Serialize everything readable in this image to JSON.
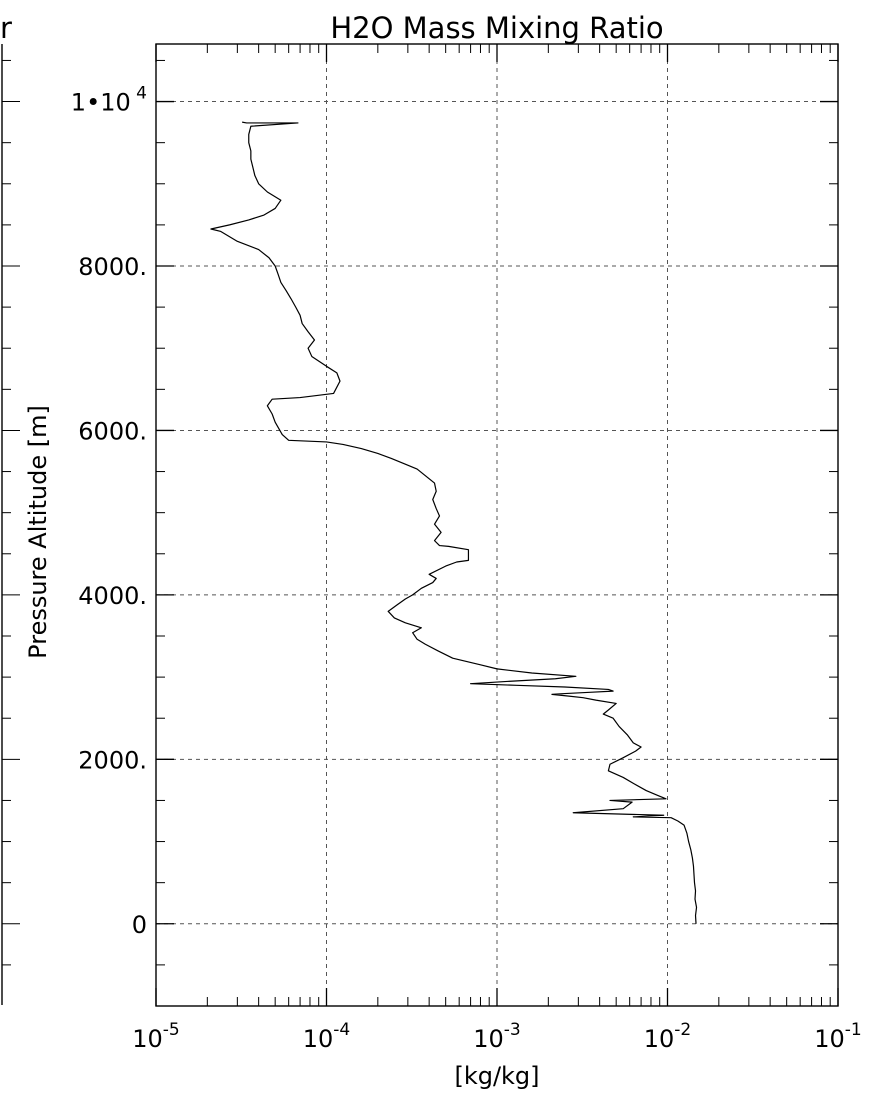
{
  "chart_data": {
    "type": "line",
    "title": "H2O Mass Mixing Ratio",
    "left_panel_title_fragment": "r",
    "xlabel": "[kg/kg]",
    "ylabel": "Pressure Altitude [m]",
    "xscale": "log",
    "xlim": [
      1e-05,
      0.1
    ],
    "ylim": [
      -1000,
      10700
    ],
    "grid": true,
    "x_tick_labels": [
      {
        "base": "10",
        "exp": "-5",
        "value": 1e-05
      },
      {
        "base": "10",
        "exp": "-4",
        "value": 0.0001
      },
      {
        "base": "10",
        "exp": "-3",
        "value": 0.001
      },
      {
        "base": "10",
        "exp": "-2",
        "value": 0.01
      },
      {
        "base": "10",
        "exp": "-1",
        "value": 0.1
      }
    ],
    "y_tick_labels": [
      {
        "label": "0",
        "value": 0
      },
      {
        "label": "2000.",
        "value": 2000
      },
      {
        "label": "4000.",
        "value": 4000
      },
      {
        "label": "6000.",
        "value": 6000
      },
      {
        "label": "8000.",
        "value": 8000
      },
      {
        "label": "1•10",
        "exp": "4",
        "value": 10000
      }
    ],
    "series": [
      {
        "color": "#000000",
        "points": [
          [
            0.0147,
            0
          ],
          [
            0.0146,
            100
          ],
          [
            0.0148,
            200
          ],
          [
            0.0145,
            300
          ],
          [
            0.0146,
            400
          ],
          [
            0.0144,
            500
          ],
          [
            0.0143,
            600
          ],
          [
            0.0142,
            700
          ],
          [
            0.014,
            800
          ],
          [
            0.0137,
            900
          ],
          [
            0.0133,
            1000
          ],
          [
            0.013,
            1100
          ],
          [
            0.0125,
            1200
          ],
          [
            0.0115,
            1250
          ],
          [
            0.0105,
            1290
          ],
          [
            0.0063,
            1300
          ],
          [
            0.0095,
            1320
          ],
          [
            0.0028,
            1350
          ],
          [
            0.0055,
            1400
          ],
          [
            0.0062,
            1480
          ],
          [
            0.0046,
            1500
          ],
          [
            0.0098,
            1520
          ],
          [
            0.0088,
            1560
          ],
          [
            0.0075,
            1620
          ],
          [
            0.0064,
            1700
          ],
          [
            0.0055,
            1780
          ],
          [
            0.0045,
            1860
          ],
          [
            0.0046,
            1940
          ],
          [
            0.0055,
            2020
          ],
          [
            0.0065,
            2100
          ],
          [
            0.007,
            2150
          ],
          [
            0.0063,
            2200
          ],
          [
            0.0058,
            2300
          ],
          [
            0.0052,
            2400
          ],
          [
            0.0048,
            2500
          ],
          [
            0.0042,
            2550
          ],
          [
            0.0045,
            2600
          ],
          [
            0.005,
            2680
          ],
          [
            0.0038,
            2720
          ],
          [
            0.0032,
            2750
          ],
          [
            0.0026,
            2770
          ],
          [
            0.0021,
            2790
          ],
          [
            0.0025,
            2800
          ],
          [
            0.0035,
            2815
          ],
          [
            0.0048,
            2830
          ],
          [
            0.0045,
            2850
          ],
          [
            0.0025,
            2880
          ],
          [
            0.0013,
            2900
          ],
          [
            0.0007,
            2920
          ],
          [
            0.0012,
            2950
          ],
          [
            0.0022,
            2980
          ],
          [
            0.0029,
            3010
          ],
          [
            0.0016,
            3050
          ],
          [
            0.001,
            3100
          ],
          [
            0.0008,
            3150
          ],
          [
            0.00055,
            3230
          ],
          [
            0.00045,
            3320
          ],
          [
            0.00038,
            3400
          ],
          [
            0.00034,
            3460
          ],
          [
            0.00032,
            3540
          ],
          [
            0.00036,
            3600
          ],
          [
            0.00029,
            3660
          ],
          [
            0.00025,
            3720
          ],
          [
            0.00023,
            3800
          ],
          [
            0.00026,
            3880
          ],
          [
            0.00029,
            3950
          ],
          [
            0.00032,
            4000
          ],
          [
            0.00036,
            4080
          ],
          [
            0.00042,
            4150
          ],
          [
            0.00044,
            4200
          ],
          [
            0.0004,
            4250
          ],
          [
            0.0005,
            4350
          ],
          [
            0.00058,
            4400
          ],
          [
            0.00068,
            4420
          ],
          [
            0.00068,
            4550
          ],
          [
            0.00052,
            4590
          ],
          [
            0.00046,
            4600
          ],
          [
            0.00043,
            4660
          ],
          [
            0.00047,
            4760
          ],
          [
            0.00043,
            4860
          ],
          [
            0.00046,
            4960
          ],
          [
            0.00044,
            5050
          ],
          [
            0.00042,
            5160
          ],
          [
            0.00044,
            5260
          ],
          [
            0.00043,
            5360
          ],
          [
            0.00038,
            5450
          ],
          [
            0.00034,
            5530
          ],
          [
            0.00029,
            5590
          ],
          [
            0.00024,
            5660
          ],
          [
            0.0002,
            5720
          ],
          [
            0.00016,
            5780
          ],
          [
            0.000125,
            5830
          ],
          [
            0.0001,
            5860
          ],
          [
            6e-05,
            5880
          ],
          [
            5.5e-05,
            5950
          ],
          [
            5e-05,
            6100
          ],
          [
            4.8e-05,
            6200
          ],
          [
            4.5e-05,
            6300
          ],
          [
            4.8e-05,
            6380
          ],
          [
            7e-05,
            6400
          ],
          [
            0.00011,
            6450
          ],
          [
            0.00012,
            6600
          ],
          [
            0.000115,
            6700
          ],
          [
            0.0001,
            6780
          ],
          [
            8.2e-05,
            6900
          ],
          [
            7.8e-05,
            7000
          ],
          [
            8.5e-05,
            7100
          ],
          [
            7.8e-05,
            7200
          ],
          [
            7.2e-05,
            7300
          ],
          [
            7e-05,
            7400
          ],
          [
            6.6e-05,
            7500
          ],
          [
            6.2e-05,
            7600
          ],
          [
            5.8e-05,
            7700
          ],
          [
            5.4e-05,
            7800
          ],
          [
            5.2e-05,
            7900
          ],
          [
            5e-05,
            8000
          ],
          [
            4.6e-05,
            8100
          ],
          [
            4e-05,
            8200
          ],
          [
            3e-05,
            8300
          ],
          [
            2.4e-05,
            8420
          ],
          [
            2.1e-05,
            8450
          ],
          [
            2.7e-05,
            8500
          ],
          [
            3.5e-05,
            8560
          ],
          [
            4.3e-05,
            8620
          ],
          [
            5e-05,
            8700
          ],
          [
            5.4e-05,
            8800
          ],
          [
            4.5e-05,
            8900
          ],
          [
            4e-05,
            9000
          ],
          [
            3.8e-05,
            9100
          ],
          [
            3.7e-05,
            9200
          ],
          [
            3.6e-05,
            9300
          ],
          [
            3.6e-05,
            9400
          ],
          [
            3.5e-05,
            9500
          ],
          [
            3.5e-05,
            9600
          ],
          [
            3.6e-05,
            9700
          ],
          [
            6.8e-05,
            9740
          ],
          [
            3.4e-05,
            9740
          ],
          [
            3.2e-05,
            9750
          ]
        ]
      }
    ]
  }
}
